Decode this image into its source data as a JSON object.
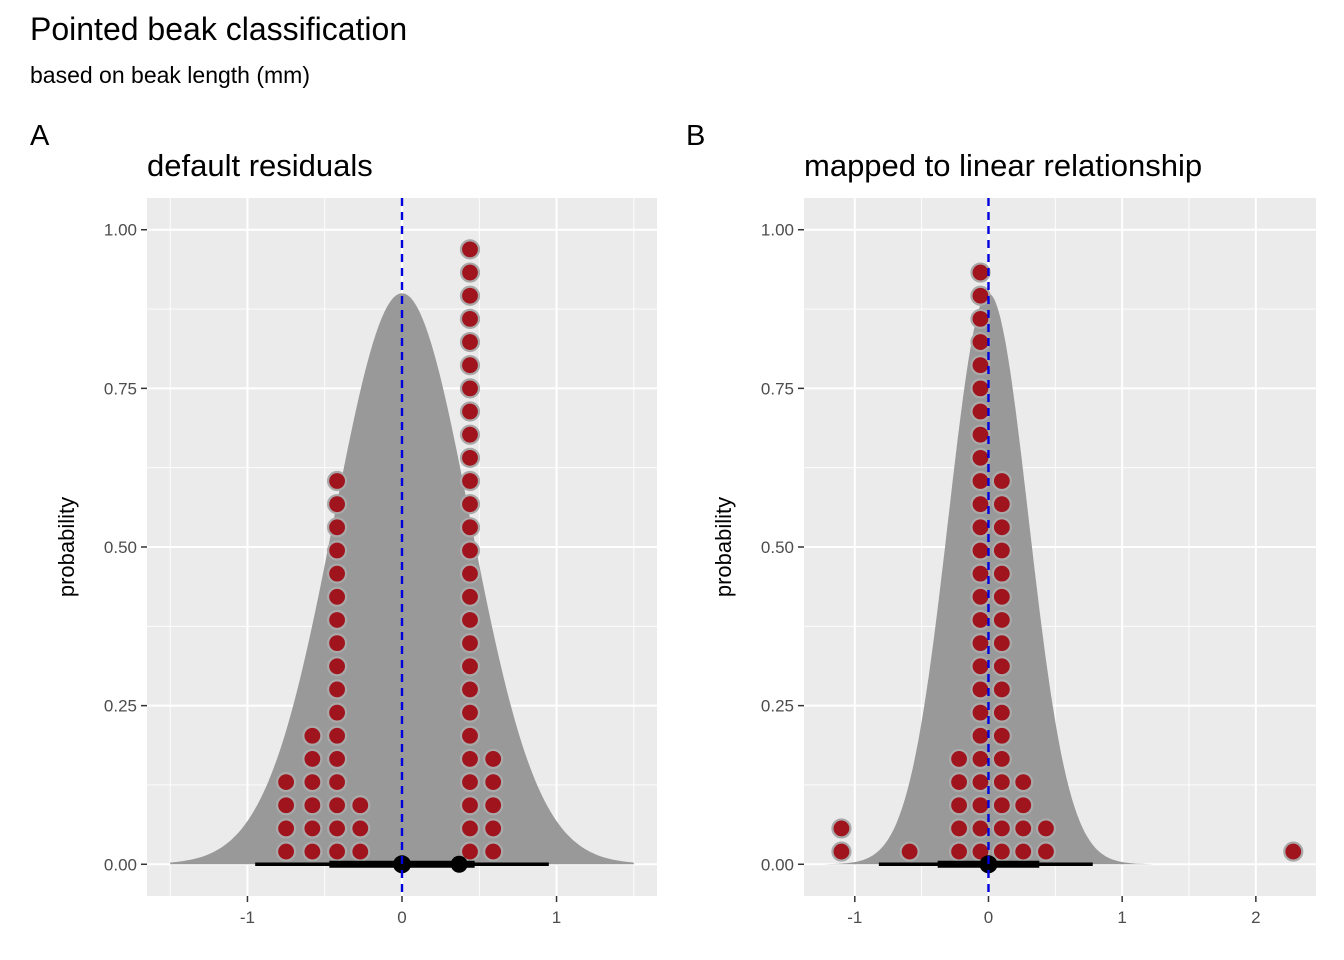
{
  "title": "Pointed beak classification",
  "subtitle": "based on beak length (mm)",
  "colors": {
    "panel_bg": "#ebebeb",
    "grid": "#ffffff",
    "density_fill": "#999999",
    "dot_fill": "#a0141e",
    "dot_stroke": "#a9a9a9",
    "zero_line": "#0000dd",
    "interval": "#000000"
  },
  "chart_data": [
    {
      "type": "scatter",
      "tag": "A",
      "title": "default residuals",
      "xlabel": "",
      "ylabel": "probability",
      "xlim": [
        -1.65,
        1.65
      ],
      "ylim": [
        -0.05,
        1.05
      ],
      "x_ticks": [
        -1,
        0,
        1
      ],
      "x_tick_labels": [
        "-1",
        "0",
        "1"
      ],
      "y_ticks": [
        0,
        0.25,
        0.5,
        0.75,
        1
      ],
      "y_tick_labels": [
        "0.00",
        "0.25",
        "0.50",
        "0.75",
        "1.00"
      ],
      "zero_line_x": 0,
      "density": {
        "center": 0,
        "sd": 0.44,
        "peak": 0.9,
        "from": -1.5,
        "to": 1.5
      },
      "dot_columns": [
        {
          "x": -0.75,
          "top": 0.135
        },
        {
          "x": -0.58,
          "top": 0.21
        },
        {
          "x": -0.42,
          "top": 0.63
        },
        {
          "x": -0.27,
          "top": 0.095
        },
        {
          "x": 0.44,
          "top": 0.975
        },
        {
          "x": 0.59,
          "top": 0.17
        }
      ],
      "dot_columns_2": [
        {
          "x": 0.44,
          "top": 0.495
        }
      ],
      "interval": {
        "point": 0.0,
        "inner": [
          -0.47,
          0.47
        ],
        "outer": [
          -0.95,
          0.95
        ],
        "extra_point": 0.37
      }
    },
    {
      "type": "scatter",
      "tag": "B",
      "title": "mapped to linear relationship",
      "xlabel": "",
      "ylabel": "probability",
      "xlim": [
        -1.38,
        2.45
      ],
      "ylim": [
        -0.05,
        1.05
      ],
      "x_ticks": [
        -1,
        0,
        1,
        2
      ],
      "x_tick_labels": [
        "-1",
        "0",
        "1",
        "2"
      ],
      "y_ticks": [
        0,
        0.25,
        0.5,
        0.75,
        1
      ],
      "y_tick_labels": [
        "0.00",
        "0.25",
        "0.50",
        "0.75",
        "1.00"
      ],
      "zero_line_x": 0,
      "density": {
        "center": 0,
        "sd": 0.3,
        "peak": 0.9,
        "from": -1.22,
        "to": 1.95
      },
      "dot_columns": [
        {
          "x": -1.1,
          "top": 0.055
        },
        {
          "x": -0.59,
          "top": 0.02
        },
        {
          "x": -0.22,
          "top": 0.195
        },
        {
          "x": -0.06,
          "top": 0.935
        },
        {
          "x": 0.1,
          "top": 0.62
        },
        {
          "x": 0.26,
          "top": 0.125
        },
        {
          "x": 0.43,
          "top": 0.055
        },
        {
          "x": 2.28,
          "top": 0.02
        }
      ],
      "interval": {
        "point": 0.0,
        "inner": [
          -0.38,
          0.38
        ],
        "outer": [
          -0.82,
          0.78
        ],
        "extra_point": null
      }
    }
  ]
}
